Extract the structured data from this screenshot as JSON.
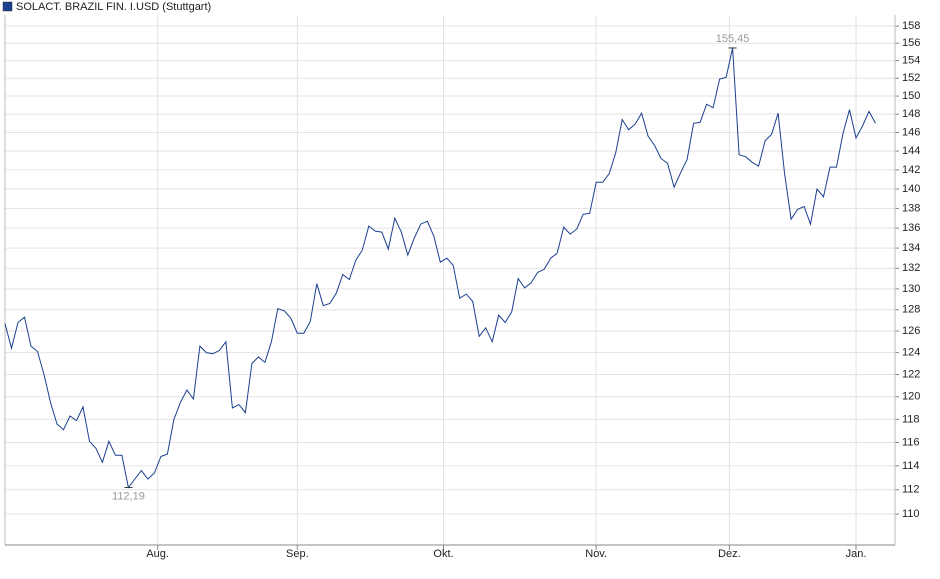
{
  "chart_data": {
    "type": "line",
    "series": [
      {
        "name": "SOLACT. BRAZIL FIN. I.USD (Stuttgart)",
        "color": "#1b3f8f",
        "values": [
          126.7,
          124.4,
          126.8,
          127.3,
          124.6,
          124.1,
          122,
          119.5,
          117.6,
          117.1,
          118.3,
          117.9,
          119.1,
          116.1,
          115.5,
          114.3,
          116.1,
          114.9,
          114.9,
          112.19,
          112.9,
          113.6,
          112.9,
          113.4,
          114.8,
          115,
          118,
          119.5,
          120.6,
          119.8,
          124.6,
          124,
          123.9,
          124.2,
          125,
          119,
          119.3,
          118.6,
          123,
          123.6,
          123.1,
          125,
          128.1,
          127.9,
          127.2,
          125.8,
          125.8,
          126.9,
          130.5,
          128.4,
          128.6,
          129.6,
          131.4,
          130.9,
          132.8,
          133.8,
          136.2,
          135.7,
          135.6,
          133.9,
          137,
          135.6,
          133.3,
          135,
          136.4,
          136.7,
          135.2,
          132.6,
          133,
          132.3,
          129.1,
          129.5,
          128.8,
          125.5,
          126.3,
          125,
          127.5,
          126.8,
          127.8,
          131,
          130.1,
          130.6,
          131.6,
          131.9,
          133,
          133.5,
          136.1,
          135.4,
          135.9,
          137.4,
          137.5,
          140.7,
          140.7,
          141.6,
          143.8,
          147.4,
          146.3,
          146.9,
          148.1,
          145.6,
          144.6,
          143.2,
          142.7,
          140.2,
          141.7,
          143.1,
          147,
          147.1,
          149.1,
          148.7,
          151.9,
          152.1,
          155.45,
          143.6,
          143.4,
          142.8,
          142.4,
          145.1,
          145.8,
          148.1,
          141.6,
          136.9,
          137.9,
          138.2,
          136.4,
          140,
          139.2,
          142.3,
          142.3,
          145.9,
          148.5,
          145.4,
          146.7,
          148.3,
          147
        ]
      }
    ],
    "max_label": {
      "value": 155.45,
      "label": "155,45"
    },
    "min_label": {
      "value": 112.19,
      "label": "112,19"
    },
    "xlim": [
      0,
      137
    ],
    "xticks": [
      {
        "value": 23.5,
        "label": "Aug."
      },
      {
        "value": 45,
        "label": "Sep."
      },
      {
        "value": 67.5,
        "label": "Okt."
      },
      {
        "value": 91,
        "label": "Nov."
      },
      {
        "value": 111.5,
        "label": "Dez."
      },
      {
        "value": 131,
        "label": "Jan."
      }
    ],
    "ylim": [
      107.5,
      159.3
    ],
    "yticks": [
      110,
      112,
      114,
      116,
      118,
      120,
      122,
      124,
      126,
      128,
      130,
      132,
      134,
      136,
      138,
      140,
      142,
      144,
      146,
      148,
      150,
      152,
      154,
      156,
      158
    ],
    "log_scale": true,
    "grid": true,
    "legend": "top-left"
  }
}
